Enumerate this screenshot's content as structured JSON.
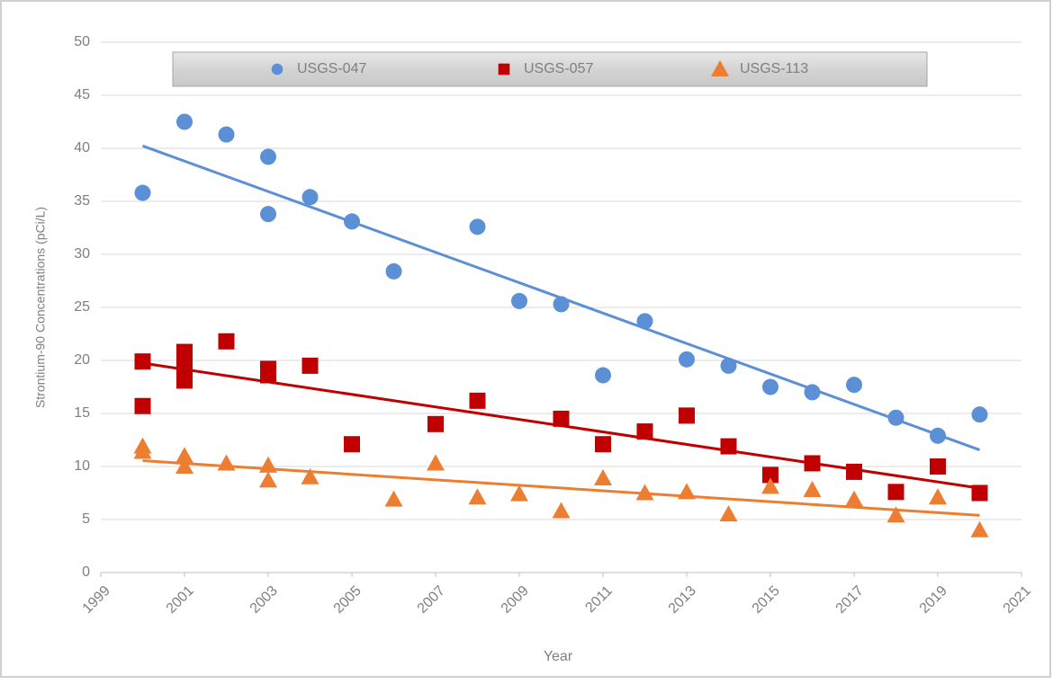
{
  "chart_data": {
    "type": "scatter",
    "xlabel": "Year",
    "ylabel": "Strontium-90 Concentrations (pCi/L)",
    "xlim": [
      1999,
      2021
    ],
    "xticks": [
      1999,
      2001,
      2003,
      2005,
      2007,
      2009,
      2011,
      2013,
      2015,
      2017,
      2019,
      2021
    ],
    "ylim": [
      0,
      50
    ],
    "yticks": [
      0,
      5,
      10,
      15,
      20,
      25,
      30,
      35,
      40,
      45,
      50
    ],
    "grid": true,
    "trendline": true,
    "legend": "top",
    "series": [
      {
        "name": "USGS-047",
        "color": "#5b8fd6",
        "marker": "circle",
        "x": [
          2000,
          2001,
          2002,
          2003,
          2003,
          2004,
          2005,
          2006,
          2008,
          2009,
          2010,
          2011,
          2012,
          2013,
          2014,
          2015,
          2016,
          2017,
          2018,
          2019,
          2020
        ],
        "values": [
          35.8,
          42.5,
          41.3,
          39.2,
          33.8,
          35.4,
          33.1,
          28.4,
          32.6,
          25.6,
          25.3,
          18.6,
          23.7,
          20.1,
          19.5,
          17.5,
          17.0,
          17.7,
          14.6,
          12.9,
          14.9
        ]
      },
      {
        "name": "USGS-057",
        "color": "#c00000",
        "marker": "square",
        "x": [
          2000,
          2000,
          2001,
          2001,
          2001,
          2002,
          2003,
          2003,
          2004,
          2005,
          2007,
          2008,
          2010,
          2011,
          2012,
          2013,
          2014,
          2015,
          2016,
          2017,
          2018,
          2019,
          2020
        ],
        "values": [
          19.9,
          15.7,
          20.8,
          19.6,
          18.1,
          21.8,
          19.2,
          18.6,
          19.5,
          12.1,
          14.0,
          16.2,
          14.5,
          12.1,
          13.3,
          14.8,
          11.9,
          9.2,
          10.3,
          9.5,
          7.6,
          10.0,
          7.5
        ]
      },
      {
        "name": "USGS-113",
        "color": "#ed7d31",
        "marker": "triangle",
        "x": [
          2000,
          2000,
          2001,
          2001,
          2002,
          2003,
          2003,
          2004,
          2006,
          2007,
          2008,
          2009,
          2010,
          2011,
          2012,
          2013,
          2014,
          2015,
          2016,
          2017,
          2018,
          2019,
          2020
        ],
        "values": [
          11.9,
          11.4,
          11.0,
          10.0,
          10.3,
          10.1,
          8.7,
          9.0,
          6.9,
          10.3,
          7.1,
          7.4,
          5.8,
          8.9,
          7.5,
          7.6,
          5.5,
          8.1,
          7.8,
          6.9,
          5.4,
          7.1,
          4.0
        ]
      }
    ]
  }
}
